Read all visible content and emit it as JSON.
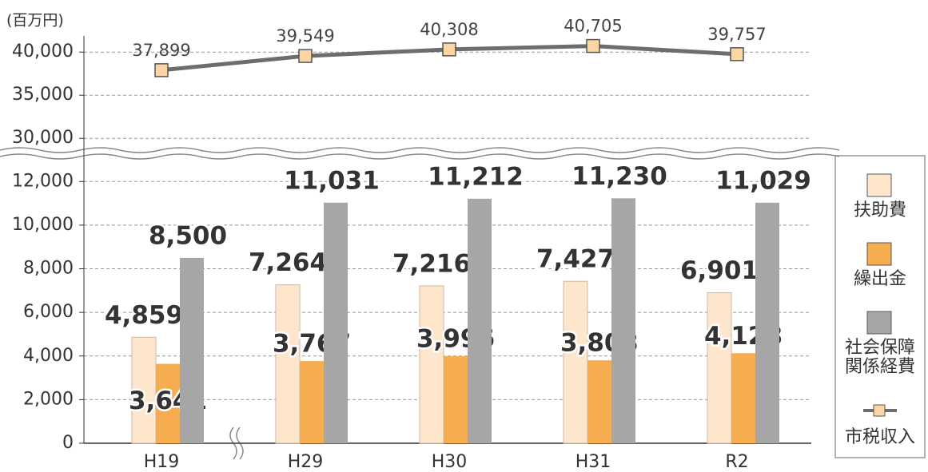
{
  "chart_data": {
    "type": "bar",
    "y_label": "(百万円)",
    "categories": [
      "H19",
      "H29",
      "H30",
      "H31",
      "R2"
    ],
    "series": [
      {
        "name": "扶助費",
        "color": "#fde6cb",
        "values": [
          4859,
          7264,
          7216,
          7427,
          6901
        ],
        "value_labels": [
          "4,859",
          "7,264",
          "7,216",
          "7,427",
          "6,901"
        ]
      },
      {
        "name": "繰出金",
        "color": "#f5ad4f",
        "values": [
          3641,
          3767,
          3996,
          3803,
          4128
        ],
        "value_labels": [
          "3,641",
          "3,767",
          "3,996",
          "3,803",
          "4,128"
        ]
      },
      {
        "name": "社会保障関係経費",
        "color": "#a6a6a6",
        "values": [
          8500,
          11031,
          11212,
          11230,
          11029
        ],
        "value_labels": [
          "8,500",
          "11,031",
          "11,212",
          "11,230",
          "11,029"
        ]
      },
      {
        "name": "市税収入",
        "type": "line",
        "axis": "y2",
        "color": "#6d6d6d",
        "marker_color": "#fcd5a5",
        "values": [
          37899,
          39549,
          40308,
          40705,
          39757
        ],
        "value_labels": [
          "37,899",
          "39,549",
          "40,308",
          "40,705",
          "39,757"
        ]
      }
    ],
    "ylim": [
      0,
      13000
    ],
    "yticks": [
      0,
      {
        "value": 2000,
        "label": "2,000"
      },
      {
        "value": 4000,
        "label": "4,000"
      },
      {
        "value": 6000,
        "label": "6,000"
      },
      {
        "value": 8000,
        "label": "8,000"
      },
      {
        "value": 10000,
        "label": "10,000"
      },
      {
        "value": 12000,
        "label": "12,000"
      }
    ],
    "y2lim": [
      29000,
      41500
    ],
    "y2ticks": [
      {
        "value": 30000,
        "label": "30,000"
      },
      {
        "value": 35000,
        "label": "35,000"
      },
      {
        "value": 40000,
        "label": "40,000"
      }
    ],
    "grid": true,
    "legend": "right"
  }
}
